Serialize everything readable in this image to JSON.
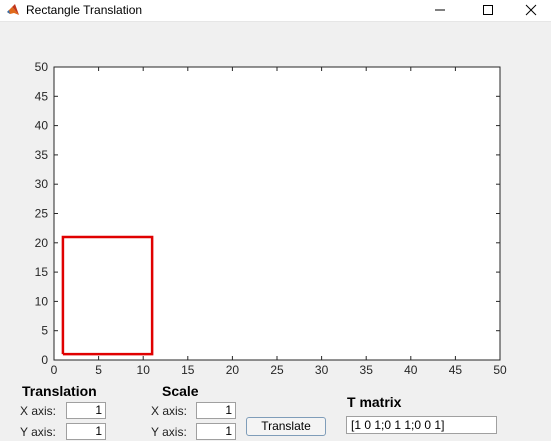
{
  "window": {
    "title": "Rectangle Translation",
    "icon": "matlab-icon",
    "buttons": [
      "minimize-icon",
      "maximize-icon",
      "close-icon"
    ]
  },
  "translation": {
    "title": "Translation",
    "x_label": "X axis:",
    "x_value": "1",
    "y_label": "Y axis:",
    "y_value": "1"
  },
  "scale": {
    "title": "Scale",
    "x_label": "X axis:",
    "x_value": "1",
    "y_label": "Y axis:",
    "y_value": "1"
  },
  "translate_button": {
    "label": "Translate"
  },
  "t_matrix": {
    "title": "T matrix",
    "value": "[1 0 1;0 1 1;0 0 1]"
  },
  "colors": {
    "rectangle": "#e00000",
    "axes_background": "#ffffff",
    "figure_background": "#f0f0f0"
  },
  "chart_data": {
    "type": "line",
    "title": "",
    "xlabel": "",
    "ylabel": "",
    "xlim": [
      0,
      50
    ],
    "ylim": [
      0,
      50
    ],
    "xticks": [
      0,
      5,
      10,
      15,
      20,
      25,
      30,
      35,
      40,
      45,
      50
    ],
    "yticks": [
      0,
      5,
      10,
      15,
      20,
      25,
      30,
      35,
      40,
      45,
      50
    ],
    "grid": false,
    "series": [
      {
        "x": [
          1,
          11,
          11,
          1,
          1
        ],
        "y": [
          1,
          1,
          21,
          21,
          1
        ],
        "color": "#e00000"
      }
    ]
  }
}
